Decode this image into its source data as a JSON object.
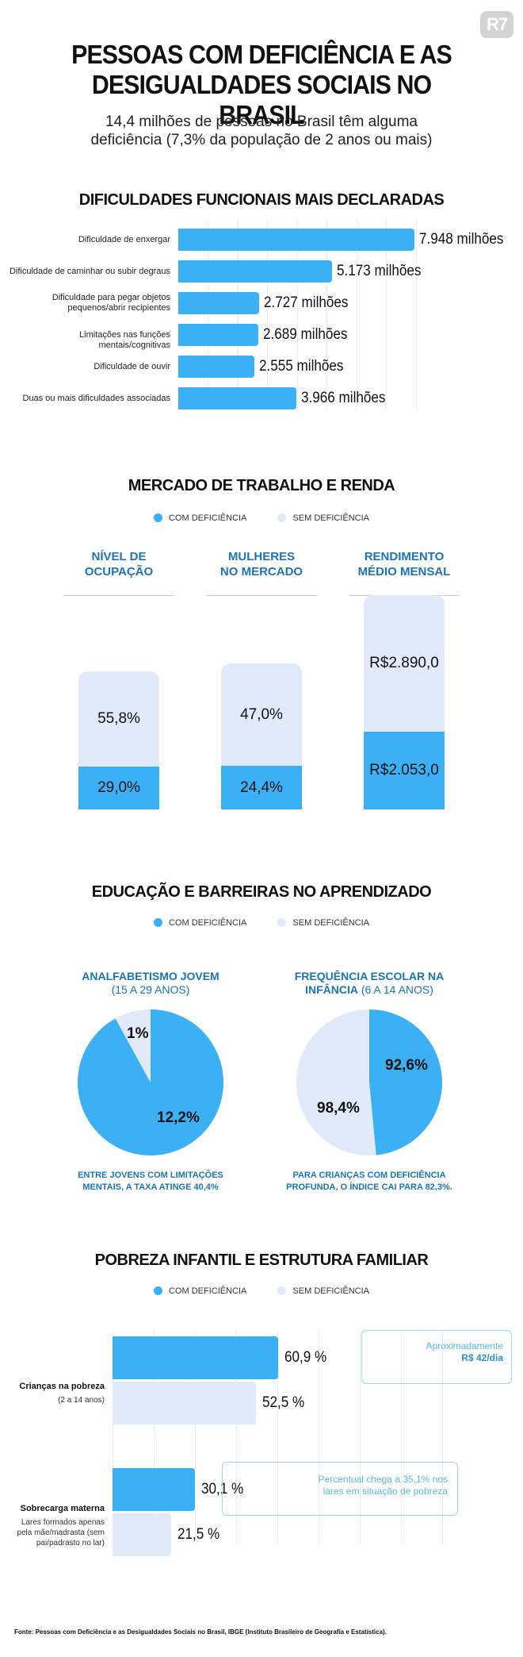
{
  "brand": {
    "logo": "R7"
  },
  "header": {
    "title_line1": "PESSOAS COM DEFICIÊNCIA E AS",
    "title_line2": "DESIGUALDADES SOCIAIS NO BRASIL",
    "subtitle_line1": "14,4 milhões de pessoas no Brasil têm alguma",
    "subtitle_line2": "deficiência (7,3% da população de 2 anos ou mais)"
  },
  "colors": {
    "com": "#3bb0f5",
    "sem": "#e1eafa",
    "accent": "#1a75b8"
  },
  "legend": {
    "com": "COM DEFICIÊNCIA",
    "sem": "SEM DEFICIÊNCIA"
  },
  "section1": {
    "title": "DIFICULDADES FUNCIONAIS MAIS DECLARADAS"
  },
  "section2": {
    "title": "MERCADO DE TRABALHO E RENDA"
  },
  "section3": {
    "title": "EDUCAÇÃO E BARREIRAS NO APRENDIZADO"
  },
  "section4": {
    "title": "POBREZA INFANTIL E ESTRUTURA FAMILIAR"
  },
  "chart_data": [
    {
      "type": "bar",
      "orientation": "horizontal",
      "title": "DIFICULDADES FUNCIONAIS MAIS DECLARADAS",
      "categories": [
        "Dificuldade de enxergar",
        "Dificuldade de caminhar ou subir degraus",
        "Dificuldade para pegar objetos pequenos/abrir recipientes",
        "Limitações nas funções mentais/cognitivas",
        "Dificuldade de ouvir",
        "Duas ou mais dificuldades associadas"
      ],
      "label_lines": [
        [
          "Dificuldade de enxergar"
        ],
        [
          "Dificuldade de caminhar ou subir degraus"
        ],
        [
          "Dificuldade para pegar objetos",
          "pequenos/abrir recipientes"
        ],
        [
          "Limitações nas funções mentais/cognitivas"
        ],
        [
          "Dificuldade de ouvir"
        ],
        [
          "Duas ou mais dificuldades associadas"
        ]
      ],
      "values": [
        7.948,
        5.173,
        2.727,
        2.689,
        2.555,
        3.966
      ],
      "value_labels": [
        "7.948 milhões",
        "5.173 milhões",
        "2.727 milhões",
        "2.689 milhões",
        "2.555 milhões",
        "3.966 milhões"
      ],
      "unit": "milhões",
      "xlim": [
        0,
        8
      ],
      "grid": true
    },
    {
      "type": "bar",
      "stacked": true,
      "title": "MERCADO DE TRABALHO E RENDA",
      "panels": [
        {
          "label_lines": [
            "NÍVEL DE",
            "OCUPAÇÃO"
          ],
          "com": 29.0,
          "sem": 55.8,
          "com_label": "29,0%",
          "sem_label": "55,8%"
        },
        {
          "label_lines": [
            "MULHERES",
            "NO MERCADO"
          ],
          "com": 24.4,
          "sem": 47.0,
          "com_label": "24,4%",
          "sem_label": "47,0%"
        },
        {
          "label_lines": [
            "RENDIMENTO",
            "MÉDIO MENSAL"
          ],
          "com": 2053.0,
          "sem": 2890.0,
          "com_label": "R$2.053,0",
          "sem_label": "R$2.890,0"
        }
      ],
      "series": [
        {
          "name": "COM DEFICIÊNCIA"
        },
        {
          "name": "SEM DEFICIÊNCIA"
        }
      ]
    },
    {
      "type": "pie",
      "title": "EDUCAÇÃO E BARREIRAS NO APRENDIZADO",
      "panels": [
        {
          "title": "ANALFABETISMO JOVEM",
          "subtitle": "(15 A 29 ANOS)",
          "com": 12.2,
          "sem": 1.0,
          "com_label": "12,2%",
          "sem_label": "1%",
          "note_lines": [
            "ENTRE JOVENS COM LIMITAÇÕES",
            "MENTAIS, A TAXA ATINGE 40,4%"
          ]
        },
        {
          "title_lines": [
            "FREQUÊNCIA ESCOLAR NA",
            "INFÂNCIA"
          ],
          "subtitle": "(6 A 14 ANOS)",
          "com": 92.6,
          "sem": 98.4,
          "com_label": "92,6%",
          "sem_label": "98,4%",
          "note_lines": [
            "PARA CRIANÇAS COM DEFICIÊNCIA",
            "PROFUNDA, O ÍNDICE CAI PARA 82,3%."
          ]
        }
      ]
    },
    {
      "type": "bar",
      "orientation": "horizontal",
      "title": "POBREZA INFANTIL E ESTRUTURA FAMILIAR",
      "groups": [
        {
          "label": "Crianças na pobreza",
          "sub_lines": [
            "(2 a 14 anos)"
          ],
          "com": 60.9,
          "sem": 52.5,
          "com_label": "60,9 %",
          "sem_label": "52,5 %",
          "callout_lines": [
            "Aproximadamente",
            "R$ 42/dia"
          ]
        },
        {
          "label": "Sobrecarga materna",
          "sub_lines": [
            "Lares formados apenas",
            "pela mãe/madrasta (sem",
            "pai/padrasto no lar)"
          ],
          "com": 30.1,
          "sem": 21.5,
          "com_label": "30,1 %",
          "sem_label": "21,5 %",
          "callout_lines": [
            "Percentual chega a 35,1% nos",
            "lares em situação de pobreza"
          ]
        }
      ],
      "series": [
        {
          "name": "COM DEFICIÊNCIA"
        },
        {
          "name": "SEM DEFICIÊNCIA"
        }
      ],
      "grid": true
    }
  ],
  "footer": {
    "source": "Fonte: Pessoas com Deficiência e as Desigualdades Sociais no Brasil, IBGE (Instituto Brasileiro de Geografia e Estatística)."
  }
}
